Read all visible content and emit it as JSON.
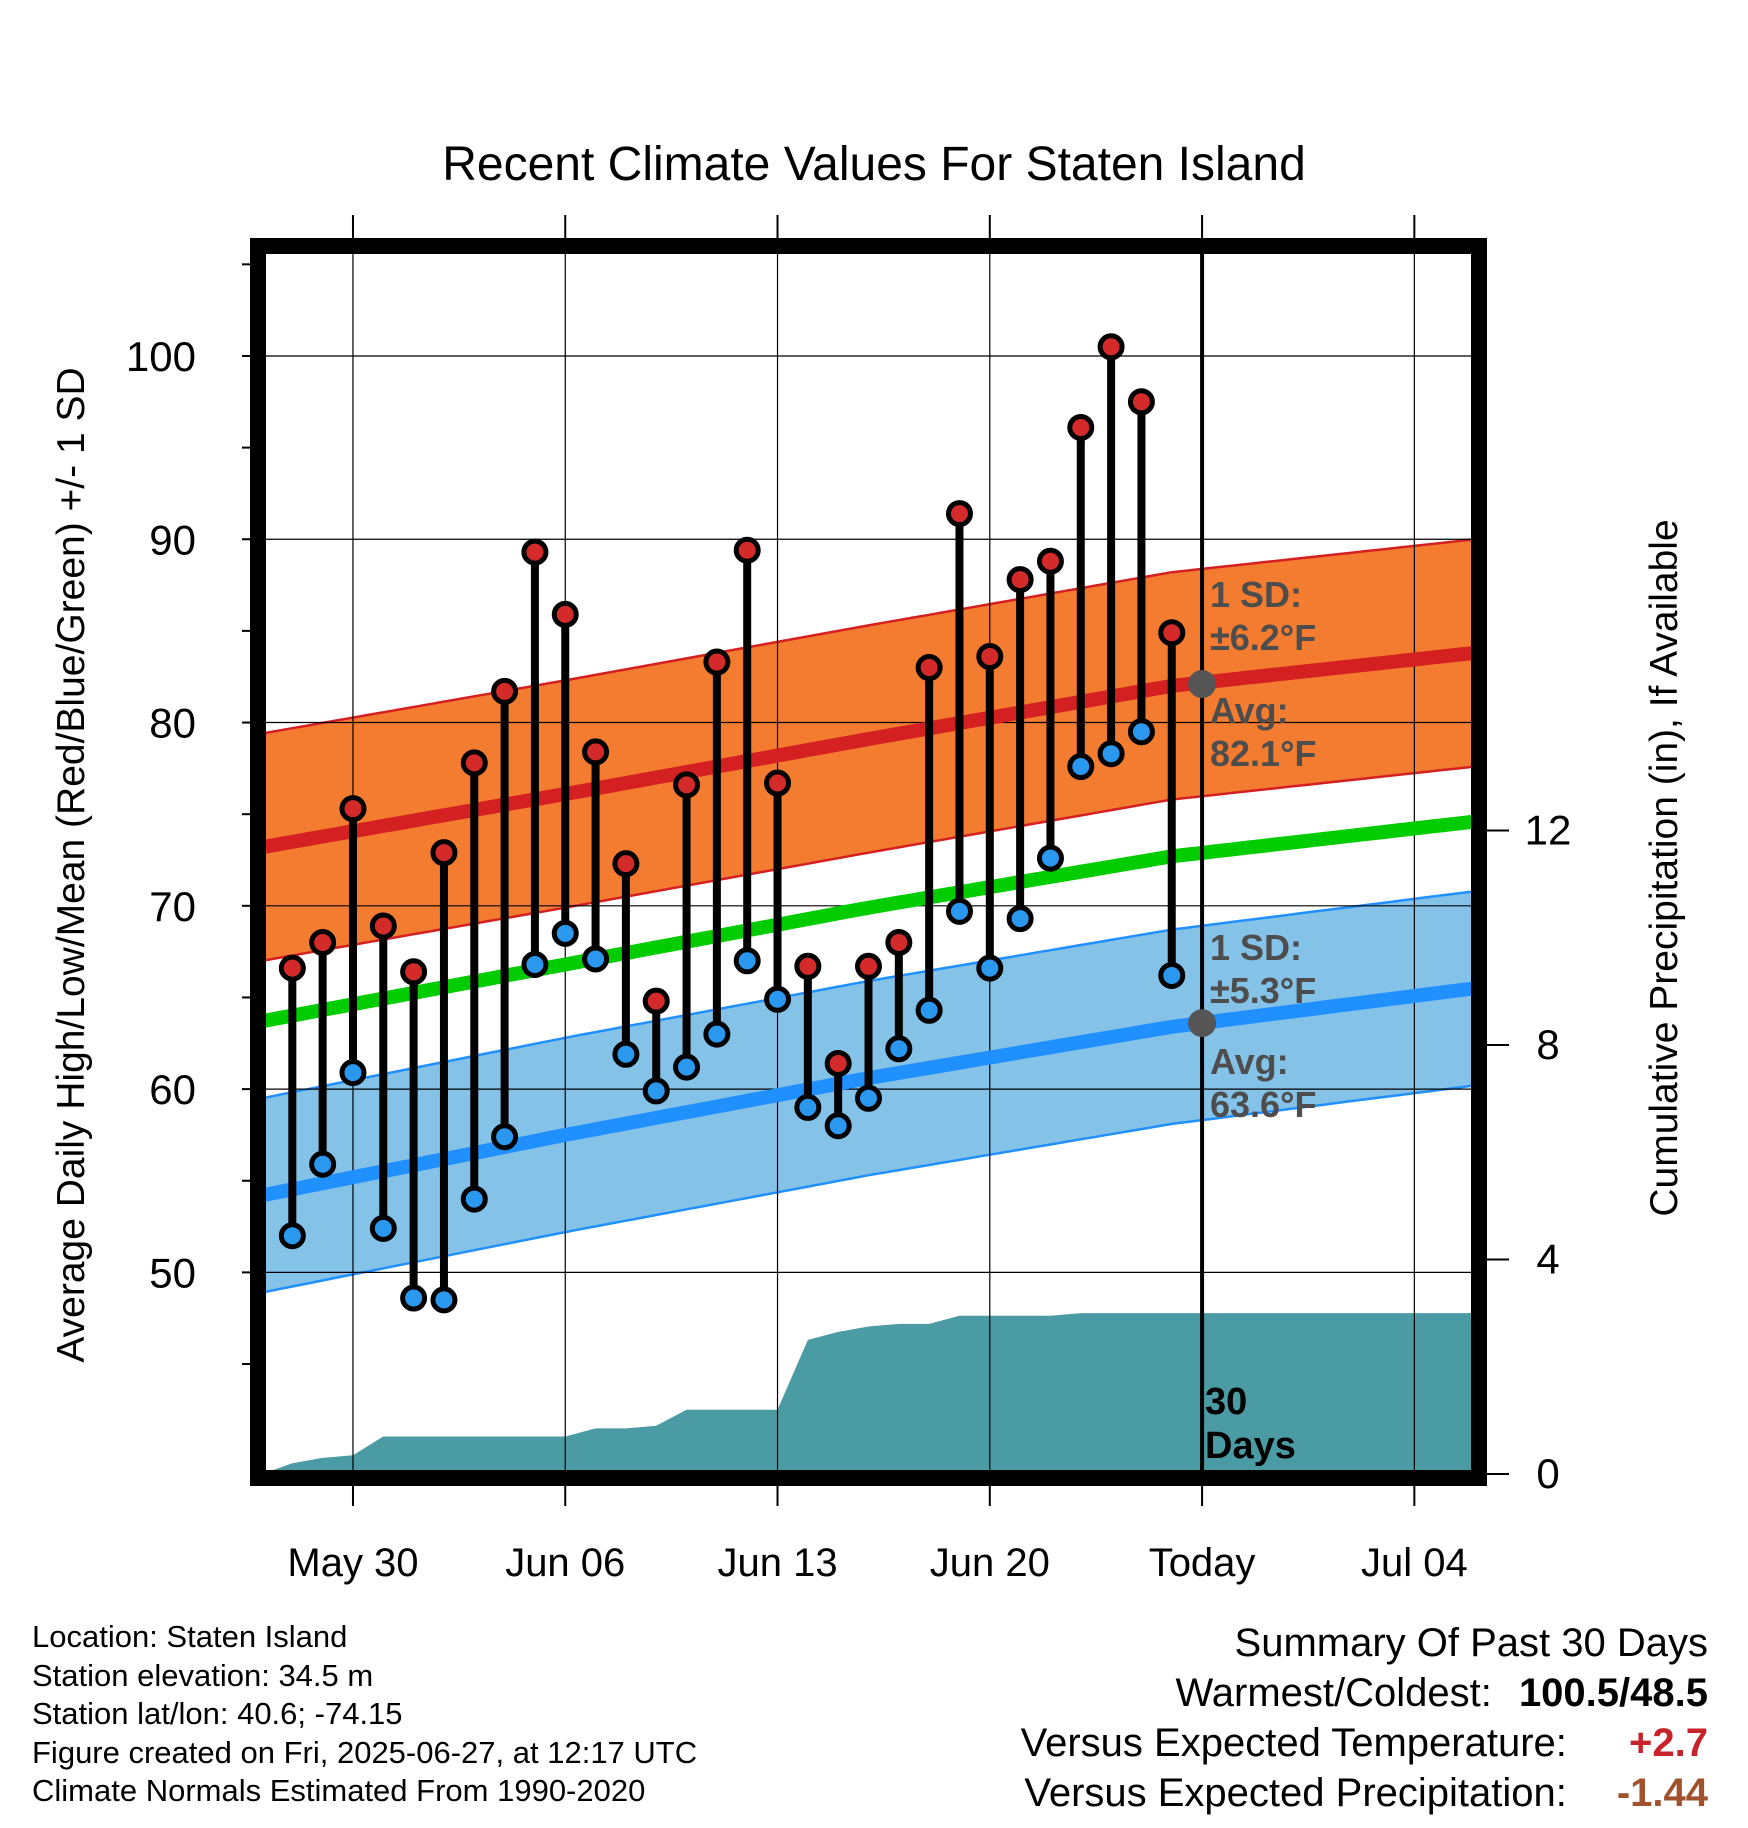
{
  "chart_data": {
    "type": "line",
    "title": "Recent Climate Values For Staten Island",
    "xlabel": "Day",
    "ylabel": "Average Daily High/Low/Mean (Red/Blue/Green) +/- 1 SD",
    "y2label": "Cumulative Precipitation (in), If Available",
    "ylim": [
      39,
      106
    ],
    "y2lim": [
      0,
      22.9
    ],
    "yticks": [
      "50",
      "60",
      "70",
      "80",
      "90",
      "100"
    ],
    "y2ticks": [
      "0",
      "4",
      "8",
      "12"
    ],
    "xticks": [
      "May 30",
      "Jun 06",
      "Jun 13",
      "Jun 20",
      "Today",
      "Jul 04"
    ],
    "x_day_range": [
      "May 27",
      "Jul 06"
    ],
    "days": [
      "May 28",
      "May 29",
      "May 30",
      "May 31",
      "Jun 01",
      "Jun 02",
      "Jun 03",
      "Jun 04",
      "Jun 05",
      "Jun 06",
      "Jun 07",
      "Jun 08",
      "Jun 09",
      "Jun 10",
      "Jun 11",
      "Jun 12",
      "Jun 13",
      "Jun 14",
      "Jun 15",
      "Jun 16",
      "Jun 17",
      "Jun 18",
      "Jun 19",
      "Jun 20",
      "Jun 21",
      "Jun 22",
      "Jun 23",
      "Jun 24",
      "Jun 25",
      "Jun 26",
      "Jun 27"
    ],
    "series": [
      {
        "name": "High",
        "color": "#cc2222",
        "values": [
          66.6,
          68.0,
          75.3,
          68.9,
          66.4,
          72.9,
          77.8,
          81.7,
          89.3,
          85.9,
          78.4,
          72.3,
          64.8,
          76.6,
          83.3,
          89.4,
          76.7,
          66.7,
          61.4,
          66.7,
          68.0,
          83.0,
          91.4,
          83.6,
          87.8,
          88.8,
          96.1,
          100.5,
          97.5,
          84.9,
          null
        ]
      },
      {
        "name": "Low",
        "color": "#2b8fe8",
        "values": [
          52.0,
          55.9,
          60.9,
          52.4,
          48.6,
          48.5,
          54.0,
          57.4,
          66.8,
          68.5,
          67.1,
          61.9,
          59.9,
          61.2,
          63.0,
          67.0,
          64.9,
          59.0,
          58.0,
          59.5,
          62.2,
          64.3,
          69.7,
          66.6,
          69.3,
          72.6,
          77.6,
          78.3,
          79.5,
          66.2,
          null
        ]
      },
      {
        "name": "Cumulative Precipitation",
        "color": "#4a9ba3",
        "x": [
          "May 27",
          "May 28",
          "May 29",
          "May 30",
          "May 31",
          "Jun 01",
          "Jun 02",
          "Jun 03",
          "Jun 04",
          "Jun 05",
          "Jun 06",
          "Jun 07",
          "Jun 08",
          "Jun 09",
          "Jun 10",
          "Jun 11",
          "Jun 12",
          "Jun 13",
          "Jun 14",
          "Jun 15",
          "Jun 16",
          "Jun 17",
          "Jun 18",
          "Jun 19",
          "Jun 20",
          "Jun 21",
          "Jun 22",
          "Jun 23",
          "Jun 24",
          "Jun 25",
          "Jun 26",
          "Jun 27",
          "Jul 06"
        ],
        "values": [
          0,
          0.2,
          0.3,
          0.35,
          0.7,
          0.7,
          0.7,
          0.7,
          0.7,
          0.7,
          0.7,
          0.85,
          0.85,
          0.9,
          1.2,
          1.2,
          1.2,
          1.2,
          2.5,
          2.65,
          2.75,
          2.8,
          2.8,
          2.95,
          2.95,
          2.95,
          2.95,
          3.0,
          3.0,
          3.0,
          3.0,
          3.0,
          3.0
        ]
      }
    ],
    "normals": {
      "x": [
        "May 27",
        "Jun 06",
        "Jun 16",
        "Jun 26",
        "Jul 06"
      ],
      "high_mean": [
        73.2,
        76.1,
        79.1,
        82.0,
        83.8
      ],
      "low_mean": [
        54.2,
        57.5,
        60.6,
        63.4,
        65.5
      ],
      "mean": [
        63.7,
        66.8,
        69.9,
        72.7,
        74.6
      ],
      "high_sd": 6.2,
      "low_sd": 5.3
    },
    "annotations": {
      "high_sd_label": "1 SD:",
      "high_sd_value": "±6.2°F",
      "high_avg_label": "Avg:",
      "high_avg_value": "82.1°F",
      "low_sd_label": "1 SD:",
      "low_sd_value": "±5.3°F",
      "low_avg_label": "Avg:",
      "low_avg_value": "63.6°F",
      "today_high_avg": 82.1,
      "today_low_avg": 63.6,
      "days_number": "30",
      "days_word": "Days"
    },
    "colors": {
      "high_band": "#f47c30",
      "high_line": "#d42020",
      "low_band": "#85c2e8",
      "low_line": "#2190ff",
      "mean_line": "#00cc00",
      "precip": "#4a9ba3",
      "annotation": "#4d4d4d"
    },
    "grid": true
  },
  "info": {
    "location": "Location: Staten Island",
    "elevation": "Station elevation: 34.5 m",
    "latlon": "Station lat/lon: 40.6; -74.15",
    "created": "Figure created on Fri, 2025-06-27, at 12:17 UTC",
    "normals": "Climate Normals Estimated From 1990-2020"
  },
  "summary": {
    "title": "Summary Of Past 30 Days",
    "warmest_label": "Warmest/Coldest:",
    "warmest_value": "100.5/48.5",
    "temp_label": "Versus Expected Temperature:",
    "temp_value": "+2.7",
    "precip_label": "Versus Expected Precipitation:",
    "precip_value": "-1.44"
  }
}
